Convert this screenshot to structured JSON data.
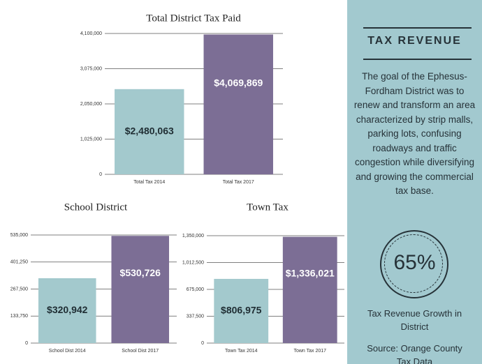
{
  "chart_data": [
    {
      "type": "bar",
      "title": "Total District Tax Paid",
      "categories": [
        "Total Tax 2014",
        "Total Tax 2017"
      ],
      "values": [
        2480063,
        4069869
      ],
      "value_labels": [
        "$2,480,063",
        "$4,069,869"
      ],
      "colors": [
        "#a3c9cd",
        "#7c6e95"
      ],
      "ylim": [
        0,
        4100000
      ],
      "yticks": [
        0,
        {
          "value": 1025000,
          "label": "1,025,000"
        },
        {
          "value": 2050000,
          "label": "2,050,000"
        },
        {
          "value": 3075000,
          "label": "3,075,000"
        },
        {
          "value": 4100000,
          "label": "4,100,000"
        }
      ],
      "grid": true
    },
    {
      "type": "bar",
      "title": "School District",
      "categories": [
        "School Dist 2014",
        "School Dist 2017"
      ],
      "values": [
        320942,
        530726
      ],
      "value_labels": [
        "$320,942",
        "$530,726"
      ],
      "colors": [
        "#a3c9cd",
        "#7c6e95"
      ],
      "ylim": [
        0,
        535000
      ],
      "yticks": [
        0,
        {
          "value": 133750,
          "label": "133,750"
        },
        {
          "value": 267500,
          "label": "267,500"
        },
        {
          "value": 401250,
          "label": "401,250"
        },
        {
          "value": 535000,
          "label": "535,000"
        }
      ],
      "grid": true
    },
    {
      "type": "bar",
      "title": "Town Tax",
      "categories": [
        "Town Tax 2014",
        "Town Tax 2017"
      ],
      "values": [
        806975,
        1336021
      ],
      "value_labels": [
        "$806,975",
        "$1,336,021"
      ],
      "colors": [
        "#a3c9cd",
        "#7c6e95"
      ],
      "ylim": [
        0,
        1350000
      ],
      "yticks": [
        0,
        {
          "value": 337500,
          "label": "337,500"
        },
        {
          "value": 675000,
          "label": "675,000"
        },
        {
          "value": 1012500,
          "label": "1,012,500"
        },
        {
          "value": 1350000,
          "label": "1,350,000"
        }
      ],
      "grid": true
    }
  ],
  "sidebar": {
    "heading": "TAX REVENUE",
    "text": "The goal of the Ephesus-Fordham District was to renew and transform an area characterized by strip malls, parking lots, confusing roadways and traffic congestion while diversifying and growing the commercial tax base.",
    "stat": "65%",
    "caption": "Tax Revenue Growth in District",
    "source": "Source: Orange County Tax Data"
  }
}
